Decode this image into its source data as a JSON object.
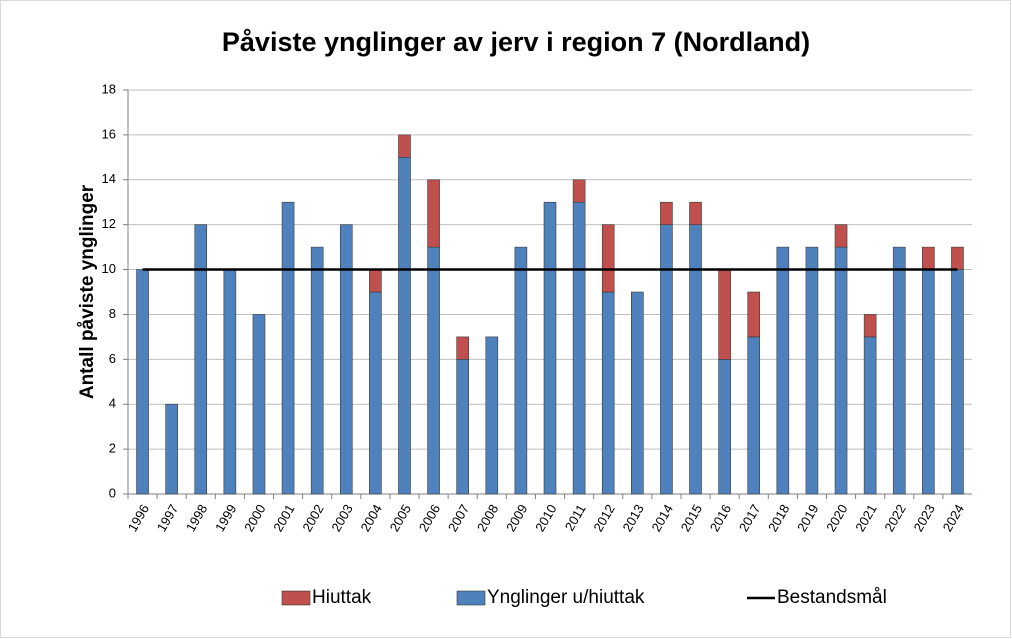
{
  "chart_data": {
    "type": "stacked_bar_line",
    "title": "Påviste ynglinger av jerv i region 7 (Nordland)",
    "y_label": "Antall påviste ynglinger",
    "categories": [
      "1996",
      "1997",
      "1998",
      "1999",
      "2000",
      "2001",
      "2002",
      "2003",
      "2004",
      "2005",
      "2006",
      "2007",
      "2008",
      "2009",
      "2010",
      "2011",
      "2012",
      "2013",
      "2014",
      "2015",
      "2016",
      "2017",
      "2018",
      "2019",
      "2020",
      "2021",
      "2022",
      "2023",
      "2024"
    ],
    "series": [
      {
        "name": "Ynglinger u/hiuttak",
        "color": "#4f81bd",
        "values": [
          10,
          4,
          12,
          10,
          8,
          13,
          11,
          12,
          9,
          15,
          11,
          6,
          7,
          11,
          13,
          13,
          9,
          9,
          12,
          12,
          6,
          7,
          11,
          11,
          11,
          7,
          11,
          10,
          10
        ]
      },
      {
        "name": "Hiuttak",
        "color": "#c0504d",
        "values": [
          0,
          0,
          0,
          0,
          0,
          0,
          0,
          0,
          1,
          1,
          3,
          1,
          0,
          0,
          0,
          1,
          3,
          0,
          1,
          1,
          4,
          2,
          0,
          0,
          1,
          1,
          0,
          1,
          1
        ]
      },
      {
        "name": "Bestandsmål",
        "type": "line",
        "color": "#000000",
        "values": [
          10,
          10,
          10,
          10,
          10,
          10,
          10,
          10,
          10,
          10,
          10,
          10,
          10,
          10,
          10,
          10,
          10,
          10,
          10,
          10,
          10,
          10,
          10,
          10,
          10,
          10,
          10,
          10,
          10
        ]
      }
    ],
    "legend_order": [
      1,
      0,
      2
    ],
    "ylim": [
      0,
      18
    ],
    "yticks": [
      0,
      2,
      4,
      6,
      8,
      10,
      12,
      14,
      16,
      18
    ],
    "grid": true
  }
}
